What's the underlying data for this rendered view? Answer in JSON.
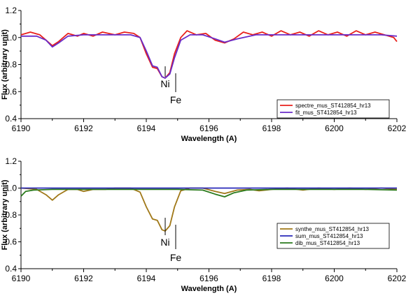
{
  "chart_data": [
    {
      "type": "line",
      "xlabel": "Wavelength (A)",
      "ylabel": "Flux (arbitrary unit)",
      "xlim": [
        6190,
        6202
      ],
      "ylim": [
        0.4,
        1.2
      ],
      "x_ticks": [
        6190,
        6192,
        6194,
        6196,
        6198,
        6200,
        6202
      ],
      "y_ticks": [
        0.4,
        0.6,
        0.8,
        1.0,
        1.2
      ],
      "y_tick_labels": [
        "0.4",
        "0.6",
        "0.8",
        "1.0",
        "1.2"
      ],
      "legend_position": "bottom-right",
      "series": [
        {
          "name": "spectre_mus_ST412854_hr13",
          "color": "#e8201c",
          "x": [
            6190.0,
            6190.3,
            6190.6,
            6190.8,
            6191.0,
            6191.2,
            6191.5,
            6191.8,
            6192.0,
            6192.3,
            6192.6,
            6193.0,
            6193.3,
            6193.6,
            6193.8,
            6194.0,
            6194.2,
            6194.35,
            6194.5,
            6194.6,
            6194.75,
            6194.9,
            6195.1,
            6195.3,
            6195.6,
            6195.9,
            6196.2,
            6196.5,
            6196.8,
            6197.1,
            6197.4,
            6197.7,
            6198.0,
            6198.3,
            6198.6,
            6198.9,
            6199.2,
            6199.5,
            6199.8,
            6200.1,
            6200.4,
            6200.7,
            6201.0,
            6201.3,
            6201.6,
            6201.9,
            6202.0
          ],
          "y": [
            1.02,
            1.04,
            1.02,
            0.98,
            0.94,
            0.97,
            1.03,
            1.01,
            1.03,
            1.01,
            1.04,
            1.02,
            1.04,
            1.03,
            1.0,
            0.88,
            0.78,
            0.77,
            0.71,
            0.7,
            0.74,
            0.88,
            1.0,
            1.05,
            1.02,
            1.03,
            0.98,
            0.96,
            0.99,
            1.04,
            1.02,
            1.04,
            1.01,
            1.05,
            1.02,
            1.04,
            1.01,
            1.05,
            1.02,
            1.04,
            1.01,
            1.05,
            1.02,
            1.04,
            1.02,
            1.0,
            0.97
          ]
        },
        {
          "name": "fit_mus_ST412854_hr13",
          "color": "#6a2cc8",
          "x": [
            6190.0,
            6190.5,
            6190.8,
            6191.0,
            6191.2,
            6191.5,
            6192.0,
            6192.5,
            6193.0,
            6193.5,
            6193.8,
            6194.0,
            6194.2,
            6194.35,
            6194.5,
            6194.6,
            6194.75,
            6194.9,
            6195.1,
            6195.4,
            6195.8,
            6196.2,
            6196.5,
            6196.9,
            6197.5,
            6198.0,
            6198.5,
            6199.0,
            6199.5,
            6200.0,
            6200.5,
            6201.0,
            6201.5,
            6202.0
          ],
          "y": [
            1.01,
            1.01,
            0.98,
            0.93,
            0.96,
            1.01,
            1.02,
            1.02,
            1.02,
            1.02,
            1.0,
            0.9,
            0.79,
            0.78,
            0.71,
            0.7,
            0.73,
            0.85,
            0.98,
            1.02,
            1.02,
            0.99,
            0.965,
            0.99,
            1.02,
            1.02,
            1.02,
            1.02,
            1.02,
            1.02,
            1.02,
            1.02,
            1.02,
            1.01
          ]
        }
      ],
      "annotations": [
        {
          "text": "Ni",
          "x": 6194.2,
          "y": 0.77
        },
        {
          "text": "Fe",
          "x": 6194.5,
          "y": 0.7
        }
      ]
    },
    {
      "type": "line",
      "xlabel": "Wavelength (A)",
      "ylabel": "Flux (arbitrary unit)",
      "xlim": [
        6190,
        6202
      ],
      "ylim": [
        0.4,
        1.2
      ],
      "x_ticks": [
        6190,
        6192,
        6194,
        6196,
        6198,
        6200,
        6202
      ],
      "y_ticks": [
        0.4,
        0.6,
        0.8,
        1.0,
        1.2
      ],
      "y_tick_labels": [
        "0.4",
        "0.6",
        "0.8",
        "1.0",
        "1.2"
      ],
      "legend_position": "bottom-right",
      "series": [
        {
          "name": "synthe_mus_ST412854_hr13",
          "color": "#a07818",
          "x": [
            6190.0,
            6190.5,
            6190.8,
            6191.0,
            6191.2,
            6191.5,
            6191.8,
            6192.0,
            6192.3,
            6192.7,
            6193.0,
            6193.5,
            6193.8,
            6194.0,
            6194.2,
            6194.35,
            6194.5,
            6194.6,
            6194.75,
            6194.9,
            6195.1,
            6195.4,
            6195.8,
            6196.2,
            6196.5,
            6196.9,
            6197.3,
            6197.6,
            6198.0,
            6198.5,
            6199.0,
            6199.5,
            6200.0,
            6200.5,
            6201.0,
            6201.5,
            6202.0
          ],
          "y": [
            1.0,
            0.99,
            0.95,
            0.91,
            0.95,
            0.99,
            0.99,
            0.975,
            0.99,
            0.99,
            1.0,
            1.0,
            0.97,
            0.86,
            0.77,
            0.76,
            0.69,
            0.68,
            0.72,
            0.86,
            0.98,
            1.0,
            1.0,
            0.975,
            0.96,
            0.985,
            0.99,
            0.98,
            0.99,
            1.0,
            0.985,
            1.0,
            0.99,
            1.0,
            0.99,
            1.0,
            0.99
          ]
        },
        {
          "name": "sum_mus_ST412854_hr13",
          "color": "#2828b8",
          "x": [
            6190.0,
            6202.0
          ],
          "y": [
            1.0,
            1.0
          ]
        },
        {
          "name": "dib_mus_ST412854_hr13",
          "color": "#2a7a1c",
          "x": [
            6190.0,
            6190.15,
            6190.4,
            6191.0,
            6192.0,
            6193.0,
            6194.0,
            6195.0,
            6195.8,
            6196.2,
            6196.5,
            6196.8,
            6197.2,
            6198.0,
            6199.0,
            6200.0,
            6201.0,
            6202.0
          ],
          "y": [
            0.94,
            0.975,
            0.985,
            0.99,
            0.99,
            0.99,
            0.99,
            0.99,
            0.985,
            0.955,
            0.935,
            0.965,
            0.985,
            0.99,
            0.99,
            0.99,
            0.99,
            0.985
          ]
        }
      ],
      "annotations": [
        {
          "text": "Ni",
          "x": 6194.2,
          "y": 0.76
        },
        {
          "text": "Fe",
          "x": 6194.5,
          "y": 0.68
        }
      ]
    }
  ]
}
